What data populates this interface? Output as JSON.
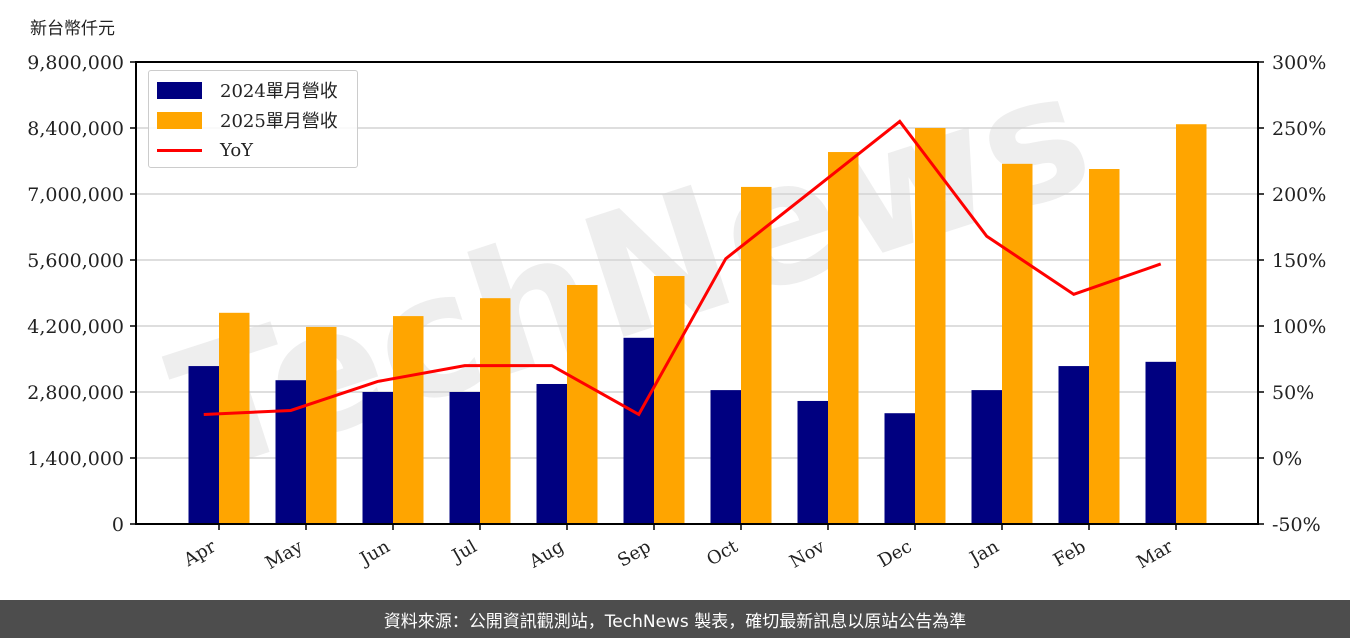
{
  "chart_data": {
    "type": "bar",
    "title": "",
    "ylabel": "新台幣仟元",
    "xlabel": "",
    "categories": [
      "Apr",
      "May",
      "Jun",
      "Jul",
      "Aug",
      "Sep",
      "Oct",
      "Nov",
      "Dec",
      "Jan",
      "Feb",
      "Mar"
    ],
    "series": [
      {
        "name": "2024單月營收",
        "type": "bar",
        "axis": "left",
        "color": "#000080",
        "values": [
          3350000,
          3050000,
          2800000,
          2800000,
          2970000,
          3950000,
          2840000,
          2610000,
          2350000,
          2840000,
          3350000,
          3440000
        ]
      },
      {
        "name": "2025單月營收",
        "type": "bar",
        "axis": "left",
        "color": "#FFA500",
        "values": [
          4480000,
          4180000,
          4410000,
          4790000,
          5070000,
          5260000,
          7150000,
          7890000,
          8400000,
          7640000,
          7530000,
          8480000
        ]
      },
      {
        "name": "YoY",
        "type": "line",
        "axis": "right",
        "color": "#FF0000",
        "values": [
          33,
          36,
          58,
          70,
          70,
          33,
          151,
          203,
          255,
          168,
          124,
          147
        ]
      }
    ],
    "left_axis": {
      "ylim": [
        0,
        9800000
      ],
      "ticks": [
        0,
        1400000,
        2800000,
        4200000,
        5600000,
        7000000,
        8400000,
        9800000
      ],
      "tick_labels": [
        "0",
        "1,400,000",
        "2,800,000",
        "4,200,000",
        "5,600,000",
        "7,000,000",
        "8,400,000",
        "9,800,000"
      ]
    },
    "right_axis": {
      "ylim": [
        -50,
        300
      ],
      "ticks": [
        -50,
        0,
        50,
        100,
        150,
        200,
        250,
        300
      ],
      "tick_labels": [
        "-50%",
        "0%",
        "50%",
        "100%",
        "150%",
        "200%",
        "250%",
        "300%"
      ]
    },
    "grid": true,
    "legend_position": "upper left",
    "watermark": "TechNews"
  },
  "header": {
    "unit_label": "新台幣仟元"
  },
  "legend": {
    "items": [
      {
        "label": "2024單月營收",
        "color": "#000080",
        "kind": "bar"
      },
      {
        "label": "2025單月營收",
        "color": "#FFA500",
        "kind": "bar"
      },
      {
        "label": "YoY",
        "color": "#FF0000",
        "kind": "line"
      }
    ]
  },
  "footer": {
    "source_text": "資料來源：公開資訊觀測站，TechNews 製表，確切最新訊息以原站公告為準"
  }
}
